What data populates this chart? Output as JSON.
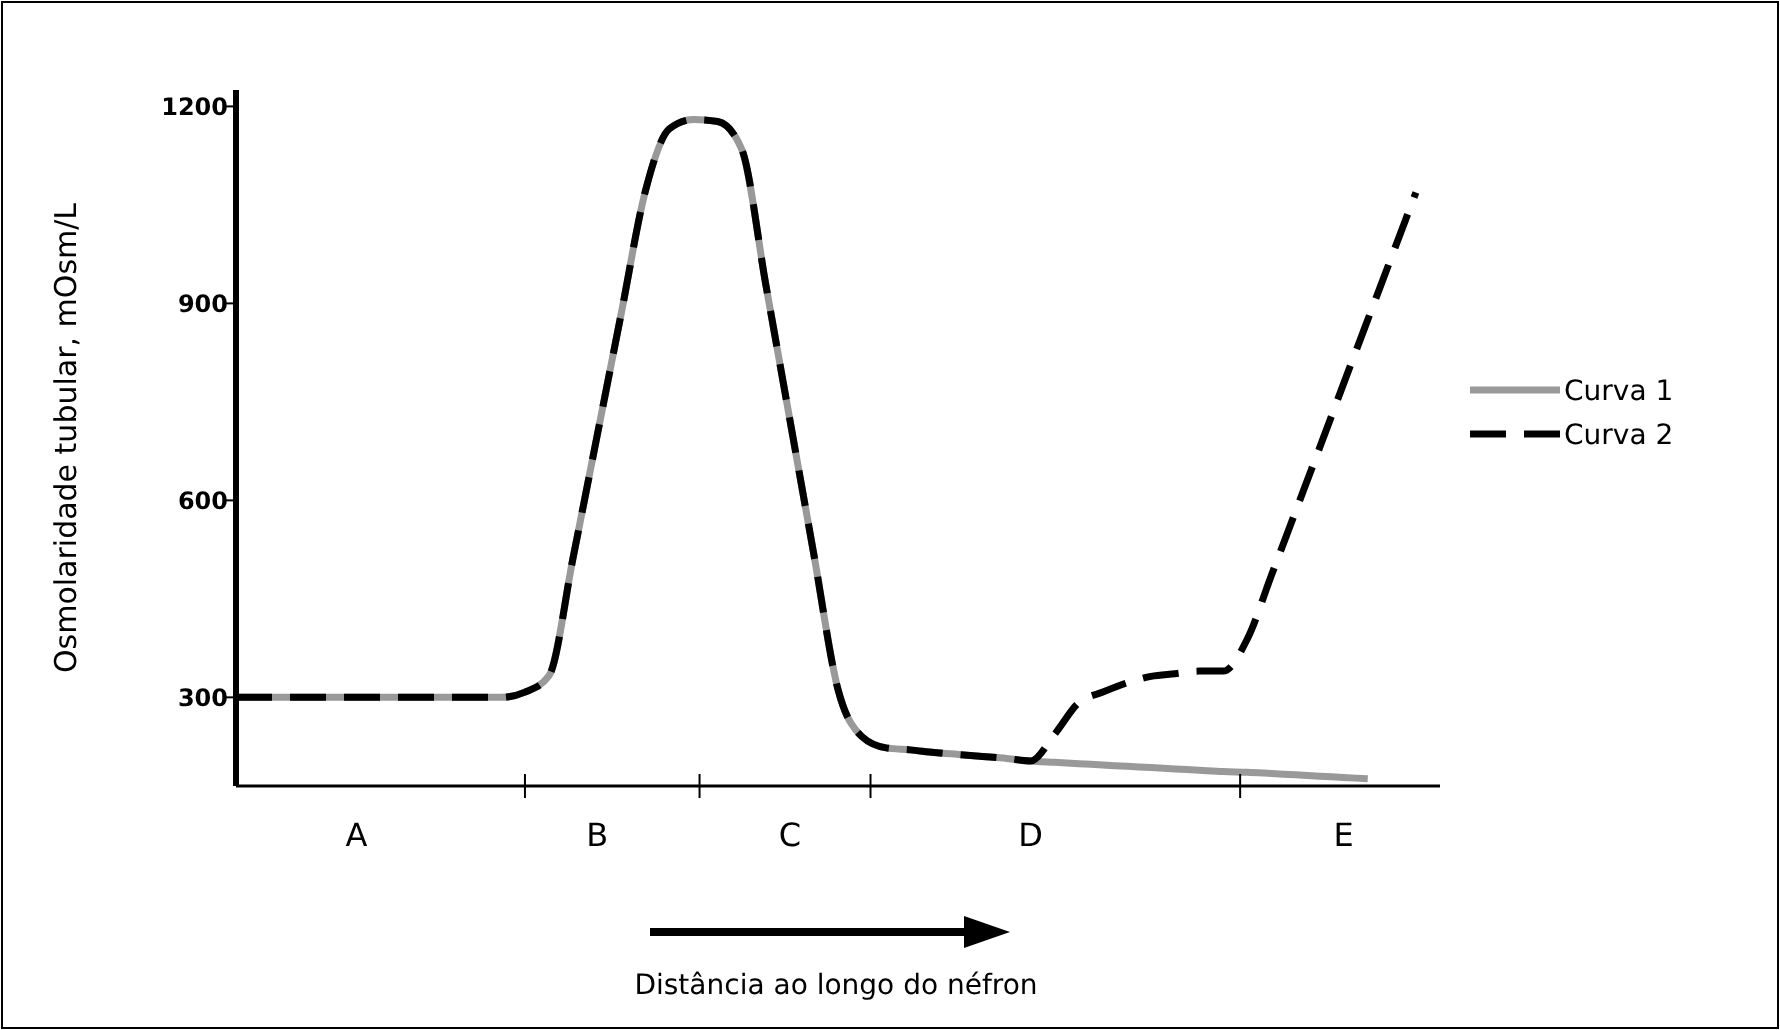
{
  "chart_data": {
    "type": "line",
    "ylabel": "Osmolaridade tubular, mOsm/L",
    "xlabel": "Distância ao longo do néfron",
    "ylim": [
      165,
      1225
    ],
    "yticks": [
      300,
      600,
      900,
      1200
    ],
    "categories": [
      null,
      null,
      null,
      null,
      null,
      "A",
      null,
      null,
      null,
      null,
      null,
      null,
      null,
      null,
      null,
      "B",
      null,
      null,
      null,
      null,
      null,
      null,
      null,
      "C",
      null,
      null,
      null,
      null,
      null,
      null,
      null,
      null,
      null,
      "D",
      null,
      null,
      null,
      null,
      null,
      null,
      null,
      null,
      null,
      null,
      null,
      null,
      "E",
      null,
      null,
      null,
      null
    ],
    "legend": "right",
    "grid": false,
    "series": [
      {
        "name": "Curva 1",
        "color": "#999999",
        "line_style": "solid",
        "values": [
          300,
          300,
          300,
          300,
          300,
          300,
          300,
          300,
          300,
          300,
          300,
          300,
          308,
          333,
          513,
          699,
          885,
          1071,
          1166,
          1180,
          1177,
          1135,
          929,
          723,
          517,
          312,
          240,
          223,
          220,
          216,
          213,
          210,
          207,
          203,
          201,
          199,
          197,
          195,
          193,
          191,
          189,
          187,
          186,
          184,
          182,
          180,
          178,
          176,
          null,
          null,
          null
        ]
      },
      {
        "name": "Curva 2",
        "color": "#000000",
        "line_style": "dashed",
        "values": [
          300,
          300,
          300,
          300,
          300,
          300,
          300,
          300,
          300,
          300,
          300,
          300,
          308,
          333,
          513,
          699,
          885,
          1071,
          1166,
          1180,
          1177,
          1135,
          929,
          723,
          517,
          312,
          240,
          223,
          220,
          216,
          213,
          210,
          207,
          203,
          244,
          292,
          308,
          322,
          332,
          336,
          340,
          340,
          389,
          486,
          583,
          680,
          778,
          875,
          972,
          1069,
          null
        ]
      }
    ]
  }
}
